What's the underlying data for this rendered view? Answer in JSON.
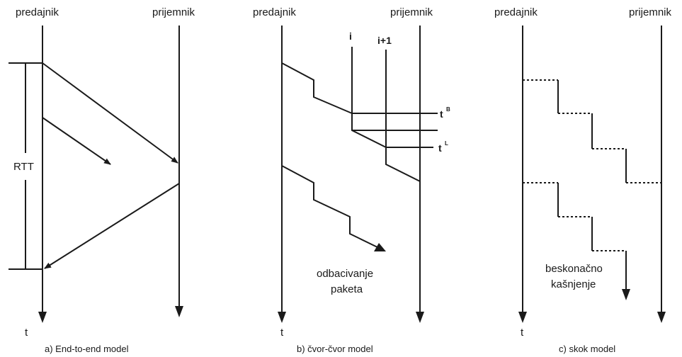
{
  "panel_a": {
    "sender": "predajnik",
    "receiver": "prijemnik",
    "rtt": "RTT",
    "time": "t",
    "caption": "a) End-to-end model"
  },
  "panel_b": {
    "sender": "predajnik",
    "receiver": "prijemnik",
    "node_i": "i",
    "node_i1": "i+1",
    "t_base": "t",
    "sup_b": "B",
    "sup_l": "L",
    "drop_line1": "odbacivanje",
    "drop_line2": "paketa",
    "time": "t",
    "caption": "b) čvor-čvor model"
  },
  "panel_c": {
    "sender": "predajnik",
    "receiver": "prijemnik",
    "delay_line1": "beskonačno",
    "delay_line2": "kašnjenje",
    "time": "t",
    "caption": "c) skok model"
  }
}
